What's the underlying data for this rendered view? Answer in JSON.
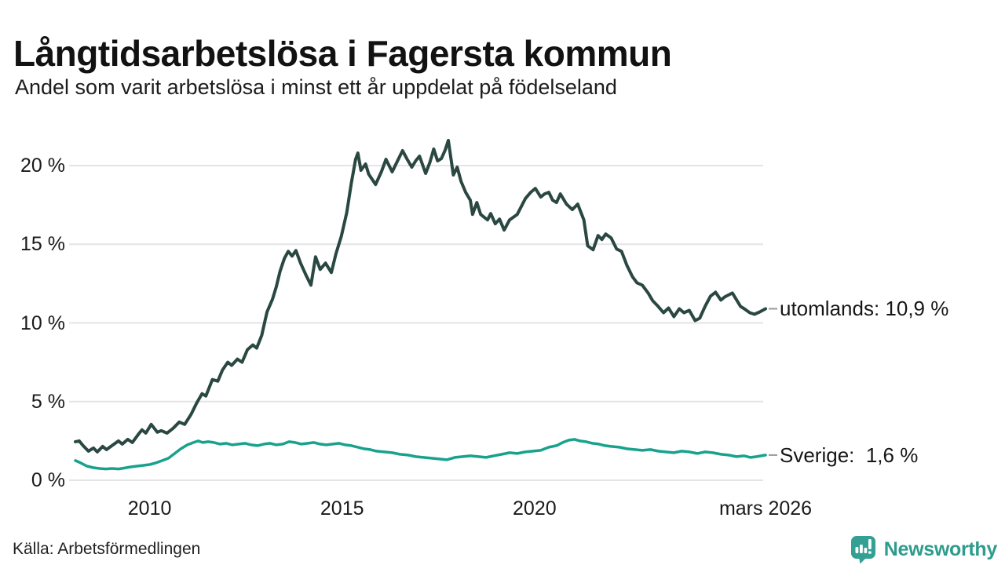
{
  "header": {
    "title": "Långtidsarbetslösa i Fagersta kommun",
    "subtitle": "Andel som varit arbetslösa i minst ett år uppdelat på födelseland"
  },
  "source": {
    "label": "Källa: Arbetsförmedlingen"
  },
  "branding": {
    "name": "Newsworthy",
    "icon": "newsworthy-speech-bubble-bar-chart",
    "icon_color": "#34a094",
    "text_color": "#2d9c8c"
  },
  "colors": {
    "grid": "#e4e4e8",
    "tick_text": "#1a1a1a",
    "end_dash": "#999999"
  },
  "chart_data": {
    "type": "line",
    "title": "Långtidsarbetslösa i Fagersta kommun",
    "xlabel": "",
    "ylabel": "",
    "x_domain": [
      2008.05,
      2026.0
    ],
    "y_domain": [
      0,
      22.5
    ],
    "grid": true,
    "legend_position": "end-of-line-labels",
    "y_ticks": [
      {
        "v": 0,
        "label": "0 %"
      },
      {
        "v": 5,
        "label": "5 %"
      },
      {
        "v": 10,
        "label": "10 %"
      },
      {
        "v": 15,
        "label": "15 %"
      },
      {
        "v": 20,
        "label": "20 %"
      }
    ],
    "x_ticks": [
      {
        "v": 2010,
        "label": "2010"
      },
      {
        "v": 2015,
        "label": "2015"
      },
      {
        "v": 2020,
        "label": "2020"
      },
      {
        "v": 2026.0,
        "label": "mars 2026"
      }
    ],
    "series": [
      {
        "name": "utomlands",
        "label": "utomlands: 10,9 %",
        "last_value": "10,9 %",
        "color": "#2a4841",
        "width": 4,
        "points": [
          [
            2008.07,
            2.45
          ],
          [
            2008.17,
            2.5
          ],
          [
            2008.27,
            2.2
          ],
          [
            2008.41,
            1.85
          ],
          [
            2008.54,
            2.05
          ],
          [
            2008.64,
            1.8
          ],
          [
            2008.78,
            2.15
          ],
          [
            2008.88,
            1.95
          ],
          [
            2009.02,
            2.2
          ],
          [
            2009.19,
            2.5
          ],
          [
            2009.29,
            2.3
          ],
          [
            2009.43,
            2.6
          ],
          [
            2009.55,
            2.4
          ],
          [
            2009.7,
            2.9
          ],
          [
            2009.8,
            3.2
          ],
          [
            2009.9,
            3.0
          ],
          [
            2010.04,
            3.55
          ],
          [
            2010.2,
            3.05
          ],
          [
            2010.3,
            3.15
          ],
          [
            2010.45,
            3.0
          ],
          [
            2010.61,
            3.3
          ],
          [
            2010.77,
            3.7
          ],
          [
            2010.91,
            3.55
          ],
          [
            2011.08,
            4.2
          ],
          [
            2011.22,
            4.9
          ],
          [
            2011.36,
            5.5
          ],
          [
            2011.46,
            5.35
          ],
          [
            2011.63,
            6.4
          ],
          [
            2011.77,
            6.3
          ],
          [
            2011.89,
            7.0
          ],
          [
            2012.03,
            7.5
          ],
          [
            2012.13,
            7.3
          ],
          [
            2012.28,
            7.7
          ],
          [
            2012.4,
            7.5
          ],
          [
            2012.54,
            8.3
          ],
          [
            2012.68,
            8.6
          ],
          [
            2012.78,
            8.4
          ],
          [
            2012.91,
            9.2
          ],
          [
            2013.05,
            10.7
          ],
          [
            2013.19,
            11.5
          ],
          [
            2013.29,
            12.3
          ],
          [
            2013.39,
            13.3
          ],
          [
            2013.5,
            14.1
          ],
          [
            2013.6,
            14.55
          ],
          [
            2013.7,
            14.25
          ],
          [
            2013.8,
            14.6
          ],
          [
            2013.92,
            13.8
          ],
          [
            2014.07,
            13.0
          ],
          [
            2014.19,
            12.4
          ],
          [
            2014.31,
            14.2
          ],
          [
            2014.43,
            13.4
          ],
          [
            2014.57,
            13.8
          ],
          [
            2014.72,
            13.2
          ],
          [
            2014.84,
            14.4
          ],
          [
            2014.98,
            15.5
          ],
          [
            2015.12,
            17.0
          ],
          [
            2015.24,
            18.9
          ],
          [
            2015.35,
            20.4
          ],
          [
            2015.41,
            20.8
          ],
          [
            2015.49,
            19.7
          ],
          [
            2015.61,
            20.1
          ],
          [
            2015.69,
            19.45
          ],
          [
            2015.87,
            18.8
          ],
          [
            2016.02,
            19.6
          ],
          [
            2016.14,
            20.4
          ],
          [
            2016.3,
            19.6
          ],
          [
            2016.44,
            20.3
          ],
          [
            2016.57,
            20.95
          ],
          [
            2016.69,
            20.4
          ],
          [
            2016.81,
            19.9
          ],
          [
            2016.91,
            20.3
          ],
          [
            2017.01,
            20.6
          ],
          [
            2017.17,
            19.5
          ],
          [
            2017.28,
            20.2
          ],
          [
            2017.38,
            21.05
          ],
          [
            2017.48,
            20.3
          ],
          [
            2017.58,
            20.45
          ],
          [
            2017.68,
            21.0
          ],
          [
            2017.76,
            21.6
          ],
          [
            2017.89,
            19.4
          ],
          [
            2017.99,
            19.9
          ],
          [
            2018.09,
            19.0
          ],
          [
            2018.21,
            18.3
          ],
          [
            2018.33,
            17.8
          ],
          [
            2018.39,
            16.9
          ],
          [
            2018.5,
            17.65
          ],
          [
            2018.6,
            16.9
          ],
          [
            2018.7,
            16.7
          ],
          [
            2018.78,
            16.55
          ],
          [
            2018.86,
            16.95
          ],
          [
            2018.98,
            16.3
          ],
          [
            2019.09,
            16.6
          ],
          [
            2019.21,
            15.9
          ],
          [
            2019.35,
            16.55
          ],
          [
            2019.55,
            16.9
          ],
          [
            2019.76,
            17.9
          ],
          [
            2019.9,
            18.3
          ],
          [
            2020.02,
            18.55
          ],
          [
            2020.16,
            18.0
          ],
          [
            2020.26,
            18.2
          ],
          [
            2020.37,
            18.3
          ],
          [
            2020.47,
            17.8
          ],
          [
            2020.57,
            17.65
          ],
          [
            2020.67,
            18.2
          ],
          [
            2020.83,
            17.55
          ],
          [
            2020.98,
            17.2
          ],
          [
            2021.12,
            17.55
          ],
          [
            2021.28,
            16.55
          ],
          [
            2021.38,
            14.9
          ],
          [
            2021.52,
            14.65
          ],
          [
            2021.65,
            15.55
          ],
          [
            2021.75,
            15.3
          ],
          [
            2021.85,
            15.65
          ],
          [
            2021.99,
            15.4
          ],
          [
            2022.13,
            14.7
          ],
          [
            2022.26,
            14.55
          ],
          [
            2022.4,
            13.65
          ],
          [
            2022.54,
            12.95
          ],
          [
            2022.66,
            12.55
          ],
          [
            2022.8,
            12.4
          ],
          [
            2022.95,
            11.9
          ],
          [
            2023.07,
            11.4
          ],
          [
            2023.21,
            11.05
          ],
          [
            2023.35,
            10.65
          ],
          [
            2023.48,
            10.95
          ],
          [
            2023.62,
            10.4
          ],
          [
            2023.76,
            10.9
          ],
          [
            2023.88,
            10.65
          ],
          [
            2024.02,
            10.8
          ],
          [
            2024.17,
            10.15
          ],
          [
            2024.29,
            10.3
          ],
          [
            2024.43,
            11.05
          ],
          [
            2024.57,
            11.7
          ],
          [
            2024.7,
            11.95
          ],
          [
            2024.84,
            11.45
          ],
          [
            2024.94,
            11.65
          ],
          [
            2025.14,
            11.9
          ],
          [
            2025.35,
            11.05
          ],
          [
            2025.45,
            10.9
          ],
          [
            2025.59,
            10.65
          ],
          [
            2025.71,
            10.55
          ],
          [
            2025.85,
            10.7
          ],
          [
            2026.0,
            10.9
          ]
        ]
      },
      {
        "name": "sverige",
        "label": "Sverige:  1,6 %",
        "last_value": "1,6 %",
        "color": "#18a28d",
        "width": 3.5,
        "points": [
          [
            2008.07,
            1.25
          ],
          [
            2008.21,
            1.1
          ],
          [
            2008.37,
            0.9
          ],
          [
            2008.54,
            0.8
          ],
          [
            2008.7,
            0.75
          ],
          [
            2008.86,
            0.72
          ],
          [
            2009.02,
            0.75
          ],
          [
            2009.19,
            0.72
          ],
          [
            2009.35,
            0.78
          ],
          [
            2009.51,
            0.85
          ],
          [
            2009.67,
            0.9
          ],
          [
            2009.84,
            0.95
          ],
          [
            2010.0,
            1.0
          ],
          [
            2010.16,
            1.1
          ],
          [
            2010.33,
            1.25
          ],
          [
            2010.49,
            1.4
          ],
          [
            2010.65,
            1.7
          ],
          [
            2010.81,
            2.0
          ],
          [
            2010.98,
            2.25
          ],
          [
            2011.14,
            2.4
          ],
          [
            2011.26,
            2.5
          ],
          [
            2011.38,
            2.4
          ],
          [
            2011.52,
            2.45
          ],
          [
            2011.67,
            2.4
          ],
          [
            2011.83,
            2.3
          ],
          [
            2011.99,
            2.35
          ],
          [
            2012.15,
            2.25
          ],
          [
            2012.32,
            2.3
          ],
          [
            2012.48,
            2.35
          ],
          [
            2012.64,
            2.25
          ],
          [
            2012.8,
            2.2
          ],
          [
            2012.97,
            2.3
          ],
          [
            2013.13,
            2.35
          ],
          [
            2013.29,
            2.25
          ],
          [
            2013.46,
            2.3
          ],
          [
            2013.62,
            2.45
          ],
          [
            2013.78,
            2.4
          ],
          [
            2013.94,
            2.3
          ],
          [
            2014.11,
            2.35
          ],
          [
            2014.27,
            2.4
          ],
          [
            2014.43,
            2.3
          ],
          [
            2014.59,
            2.25
          ],
          [
            2014.76,
            2.3
          ],
          [
            2014.92,
            2.35
          ],
          [
            2015.08,
            2.25
          ],
          [
            2015.24,
            2.2
          ],
          [
            2015.41,
            2.1
          ],
          [
            2015.57,
            2.0
          ],
          [
            2015.73,
            1.95
          ],
          [
            2015.89,
            1.85
          ],
          [
            2016.1,
            1.8
          ],
          [
            2016.3,
            1.75
          ],
          [
            2016.5,
            1.65
          ],
          [
            2016.71,
            1.6
          ],
          [
            2016.91,
            1.5
          ],
          [
            2017.11,
            1.45
          ],
          [
            2017.32,
            1.4
          ],
          [
            2017.52,
            1.35
          ],
          [
            2017.72,
            1.3
          ],
          [
            2017.93,
            1.45
          ],
          [
            2018.13,
            1.5
          ],
          [
            2018.33,
            1.55
          ],
          [
            2018.54,
            1.5
          ],
          [
            2018.74,
            1.45
          ],
          [
            2018.94,
            1.55
          ],
          [
            2019.15,
            1.65
          ],
          [
            2019.35,
            1.75
          ],
          [
            2019.55,
            1.7
          ],
          [
            2019.76,
            1.8
          ],
          [
            2019.96,
            1.85
          ],
          [
            2020.16,
            1.9
          ],
          [
            2020.37,
            2.1
          ],
          [
            2020.57,
            2.2
          ],
          [
            2020.73,
            2.4
          ],
          [
            2020.89,
            2.55
          ],
          [
            2021.04,
            2.6
          ],
          [
            2021.18,
            2.5
          ],
          [
            2021.34,
            2.45
          ],
          [
            2021.5,
            2.35
          ],
          [
            2021.67,
            2.3
          ],
          [
            2021.83,
            2.2
          ],
          [
            2021.99,
            2.15
          ],
          [
            2022.2,
            2.1
          ],
          [
            2022.4,
            2.0
          ],
          [
            2022.6,
            1.95
          ],
          [
            2022.8,
            1.9
          ],
          [
            2023.01,
            1.95
          ],
          [
            2023.21,
            1.85
          ],
          [
            2023.41,
            1.8
          ],
          [
            2023.62,
            1.75
          ],
          [
            2023.82,
            1.85
          ],
          [
            2024.02,
            1.8
          ],
          [
            2024.23,
            1.7
          ],
          [
            2024.43,
            1.8
          ],
          [
            2024.63,
            1.75
          ],
          [
            2024.84,
            1.65
          ],
          [
            2025.04,
            1.6
          ],
          [
            2025.24,
            1.5
          ],
          [
            2025.45,
            1.55
          ],
          [
            2025.61,
            1.45
          ],
          [
            2025.77,
            1.5
          ],
          [
            2026.0,
            1.6
          ]
        ]
      }
    ]
  }
}
